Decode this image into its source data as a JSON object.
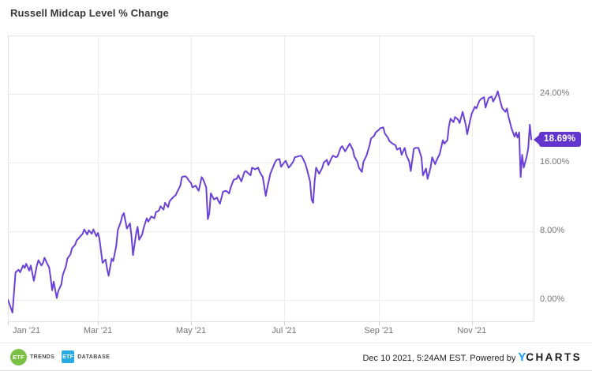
{
  "title": "Russell Midcap Level % Change",
  "colors": {
    "line": "#6b41d8",
    "badge_bg": "#6435ce",
    "grid": "#ededed",
    "plot_border": "#e3e3e3",
    "axis_label": "#757575",
    "ycharts_blue": "#119ff5",
    "etf_trends_green": "#7ac143",
    "etf_database_blue": "#29aae1"
  },
  "footer": {
    "timestamp": "Dec 10 2021, 5:24AM EST. Powered by",
    "ycharts_y": "Y",
    "ycharts_rest": "CHARTS",
    "etf_trends_abbr": "ETF",
    "etf_trends_name": "TRENDS",
    "etf_database_abbr": "ETF",
    "etf_database_name": "DATABASE"
  },
  "chart_data": {
    "type": "line",
    "title": "Russell Midcap Level % Change",
    "series_name": "Russell Midcap Level % Change",
    "x_unit": "days since 2021-01-01",
    "x_range_days": [
      0,
      345
    ],
    "y_range_pct": [
      -2.6,
      30.8
    ],
    "grid": true,
    "legend": false,
    "y_ticks": [
      {
        "value": 24,
        "label": "24.00%"
      },
      {
        "value": 16,
        "label": "16.00%"
      },
      {
        "value": 8,
        "label": "8.00%"
      },
      {
        "value": 0,
        "label": "0.00%"
      }
    ],
    "x_ticks": [
      {
        "day": 0,
        "label": "Jan '21",
        "align": "left"
      },
      {
        "day": 59,
        "label": "Mar '21",
        "align": "center"
      },
      {
        "day": 120,
        "label": "May '21",
        "align": "center"
      },
      {
        "day": 181,
        "label": "Jul '21",
        "align": "center"
      },
      {
        "day": 243,
        "label": "Sep '21",
        "align": "center"
      },
      {
        "day": 304,
        "label": "Nov '21",
        "align": "center"
      }
    ],
    "last_value": 18.69,
    "last_value_label": "18.69%",
    "points": [
      [
        0,
        0
      ],
      [
        2,
        -1
      ],
      [
        3,
        -1.5
      ],
      [
        5,
        3.2
      ],
      [
        7,
        3.5
      ],
      [
        8,
        3.2
      ],
      [
        10,
        4
      ],
      [
        11,
        3.7
      ],
      [
        12,
        4.2
      ],
      [
        14,
        3.4
      ],
      [
        15,
        4
      ],
      [
        17,
        2.2
      ],
      [
        19,
        4
      ],
      [
        20,
        4.6
      ],
      [
        22,
        4
      ],
      [
        23,
        4.3
      ],
      [
        24,
        4.9
      ],
      [
        26,
        4.1
      ],
      [
        27,
        3.8
      ],
      [
        28,
        2.6
      ],
      [
        29,
        1.1
      ],
      [
        30,
        2.1
      ],
      [
        32,
        0.2
      ],
      [
        33,
        1
      ],
      [
        35,
        1.8
      ],
      [
        36,
        2.9
      ],
      [
        38,
        3.9
      ],
      [
        39,
        4.8
      ],
      [
        41,
        5.3
      ],
      [
        42,
        6
      ],
      [
        44,
        6.4
      ],
      [
        45,
        6.9
      ],
      [
        47,
        7.3
      ],
      [
        49,
        7.7
      ],
      [
        50,
        8.2
      ],
      [
        52,
        7.6
      ],
      [
        53,
        8.1
      ],
      [
        55,
        7.7
      ],
      [
        56,
        8.2
      ],
      [
        58,
        7.4
      ],
      [
        59,
        7.8
      ],
      [
        60,
        7.1
      ],
      [
        62,
        4.3
      ],
      [
        64,
        4.7
      ],
      [
        65,
        3.6
      ],
      [
        66,
        2.8
      ],
      [
        68,
        4.8
      ],
      [
        69,
        4.5
      ],
      [
        71,
        6.3
      ],
      [
        72,
        8.1
      ],
      [
        74,
        9.1
      ],
      [
        75,
        9.8
      ],
      [
        76,
        10.1
      ],
      [
        78,
        8.3
      ],
      [
        80,
        8.9
      ],
      [
        81,
        7.4
      ],
      [
        82,
        5.2
      ],
      [
        84,
        7.7
      ],
      [
        85,
        8.5
      ],
      [
        86,
        7
      ],
      [
        88,
        7.6
      ],
      [
        89,
        8.4
      ],
      [
        91,
        9.5
      ],
      [
        92,
        9.1
      ],
      [
        94,
        9.7
      ],
      [
        96,
        9.5
      ],
      [
        97,
        10.2
      ],
      [
        99,
        10.4
      ],
      [
        100,
        10.9
      ],
      [
        102,
        10.5
      ],
      [
        103,
        11.3
      ],
      [
        105,
        10.8
      ],
      [
        106,
        11.5
      ],
      [
        108,
        11.9
      ],
      [
        110,
        12.2
      ],
      [
        111,
        12.6
      ],
      [
        113,
        13.3
      ],
      [
        114,
        14.3
      ],
      [
        116,
        14.4
      ],
      [
        117,
        14.3
      ],
      [
        119,
        13.8
      ],
      [
        120,
        13.6
      ],
      [
        121,
        13.1
      ],
      [
        123,
        13.3
      ],
      [
        125,
        12.7
      ],
      [
        127,
        14.3
      ],
      [
        128,
        14
      ],
      [
        130,
        13.1
      ],
      [
        131,
        9.4
      ],
      [
        132,
        10.1
      ],
      [
        133,
        12.4
      ],
      [
        135,
        11.7
      ],
      [
        137,
        11.9
      ],
      [
        138,
        11.5
      ],
      [
        139,
        11.2
      ],
      [
        141,
        12.6
      ],
      [
        143,
        12.7
      ],
      [
        145,
        12.4
      ],
      [
        146,
        13.1
      ],
      [
        148,
        14
      ],
      [
        150,
        14.1
      ],
      [
        151,
        14.5
      ],
      [
        153,
        13.8
      ],
      [
        155,
        14.9
      ],
      [
        156,
        15
      ],
      [
        159,
        14.5
      ],
      [
        160,
        15.4
      ],
      [
        162,
        15.2
      ],
      [
        164,
        15.4
      ],
      [
        165,
        14.9
      ],
      [
        167,
        14.3
      ],
      [
        169,
        12.1
      ],
      [
        170,
        13.1
      ],
      [
        172,
        14.7
      ],
      [
        175,
        16
      ],
      [
        176,
        16.3
      ],
      [
        178,
        16.4
      ],
      [
        179,
        15.5
      ],
      [
        181,
        16
      ],
      [
        182,
        16.2
      ],
      [
        184,
        15.4
      ],
      [
        185,
        15.6
      ],
      [
        187,
        16.1
      ],
      [
        188,
        16.6
      ],
      [
        190,
        16.7
      ],
      [
        192,
        16.8
      ],
      [
        193,
        16.6
      ],
      [
        195,
        15.8
      ],
      [
        196,
        15.2
      ],
      [
        198,
        13.8
      ],
      [
        199,
        11.7
      ],
      [
        200,
        11.3
      ],
      [
        201,
        13.8
      ],
      [
        202,
        15.4
      ],
      [
        204,
        14.7
      ],
      [
        206,
        15.4
      ],
      [
        207,
        16
      ],
      [
        209,
        16.3
      ],
      [
        210,
        15.7
      ],
      [
        212,
        16.5
      ],
      [
        213,
        16.8
      ],
      [
        215,
        16.6
      ],
      [
        216,
        16.7
      ],
      [
        218,
        17.7
      ],
      [
        219,
        17.9
      ],
      [
        221,
        17.3
      ],
      [
        223,
        17.9
      ],
      [
        224,
        18.2
      ],
      [
        226,
        17.5
      ],
      [
        227,
        16.7
      ],
      [
        229,
        16.1
      ],
      [
        230,
        15.4
      ],
      [
        232,
        14.9
      ],
      [
        233,
        16.1
      ],
      [
        235,
        16.8
      ],
      [
        237,
        18
      ],
      [
        238,
        18.8
      ],
      [
        240,
        19.1
      ],
      [
        241,
        19.5
      ],
      [
        243,
        19.8
      ],
      [
        244,
        20
      ],
      [
        246,
        20.1
      ],
      [
        247,
        19.4
      ],
      [
        249,
        18.9
      ],
      [
        250,
        18.5
      ],
      [
        252,
        18.2
      ],
      [
        254,
        18
      ],
      [
        255,
        17.5
      ],
      [
        257,
        17.7
      ],
      [
        258,
        16.9
      ],
      [
        260,
        17.7
      ],
      [
        261,
        16.9
      ],
      [
        263,
        16.1
      ],
      [
        264,
        15
      ],
      [
        266,
        17.6
      ],
      [
        267,
        17.7
      ],
      [
        269,
        17.7
      ],
      [
        271,
        16.6
      ],
      [
        272,
        14.5
      ],
      [
        274,
        15.3
      ],
      [
        275,
        14.1
      ],
      [
        277,
        15.4
      ],
      [
        278,
        16.6
      ],
      [
        280,
        15.8
      ],
      [
        281,
        16.3
      ],
      [
        283,
        17
      ],
      [
        285,
        18.6
      ],
      [
        286,
        18.2
      ],
      [
        288,
        18.6
      ],
      [
        289,
        20.2
      ],
      [
        290,
        21.1
      ],
      [
        292,
        20.7
      ],
      [
        293,
        21.3
      ],
      [
        295,
        21
      ],
      [
        296,
        20.6
      ],
      [
        298,
        21.9
      ],
      [
        300,
        20.4
      ],
      [
        301,
        19.3
      ],
      [
        303,
        21
      ],
      [
        304,
        21.7
      ],
      [
        306,
        22.5
      ],
      [
        307,
        22.3
      ],
      [
        309,
        23.2
      ],
      [
        310,
        23.4
      ],
      [
        312,
        23.6
      ],
      [
        313,
        22.4
      ],
      [
        315,
        23.5
      ],
      [
        317,
        23.7
      ],
      [
        318,
        23.1
      ],
      [
        320,
        23.8
      ],
      [
        321,
        24.3
      ],
      [
        323,
        22.9
      ],
      [
        324,
        22.3
      ],
      [
        326,
        21.9
      ],
      [
        327,
        22.3
      ],
      [
        328,
        21.4
      ],
      [
        330,
        20
      ],
      [
        332,
        19
      ],
      [
        333,
        19.5
      ],
      [
        334,
        18.9
      ],
      [
        335,
        19.5
      ],
      [
        336,
        14.3
      ],
      [
        337,
        16.9
      ],
      [
        338,
        15.4
      ],
      [
        340,
        16.7
      ],
      [
        341,
        17.7
      ],
      [
        342,
        20.4
      ],
      [
        343,
        18.69
      ]
    ]
  }
}
